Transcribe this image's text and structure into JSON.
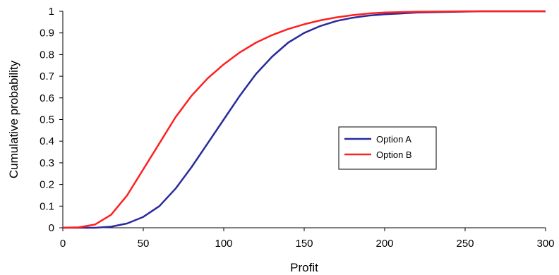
{
  "chart_data": {
    "type": "line",
    "title": "",
    "xlabel": "Profit",
    "ylabel": "Cumulative probability",
    "xlim": [
      0,
      300
    ],
    "ylim": [
      0,
      1
    ],
    "x_ticks": [
      "0",
      "50",
      "100",
      "150",
      "200",
      "250",
      "300"
    ],
    "y_ticks": [
      "0",
      "0.1",
      "0.2",
      "0.3",
      "0.4",
      "0.5",
      "0.6",
      "0.7",
      "0.8",
      "0.9",
      "1"
    ],
    "grid": false,
    "legend_position": "center-right",
    "series": [
      {
        "name": "Option A",
        "color": "#2a2a9c",
        "x": [
          0,
          20,
          30,
          40,
          50,
          60,
          70,
          80,
          90,
          100,
          110,
          120,
          130,
          140,
          150,
          160,
          170,
          180,
          190,
          200,
          210,
          220,
          240,
          260,
          300
        ],
        "y": [
          0,
          0,
          0.005,
          0.02,
          0.05,
          0.1,
          0.18,
          0.28,
          0.39,
          0.5,
          0.61,
          0.71,
          0.79,
          0.855,
          0.9,
          0.932,
          0.955,
          0.97,
          0.98,
          0.986,
          0.99,
          0.994,
          0.997,
          1,
          1
        ]
      },
      {
        "name": "Option B",
        "color": "#ff2020",
        "x": [
          0,
          10,
          20,
          30,
          40,
          50,
          60,
          70,
          80,
          90,
          100,
          110,
          120,
          130,
          140,
          150,
          160,
          170,
          180,
          190,
          200,
          220,
          250,
          300
        ],
        "y": [
          0,
          0.002,
          0.015,
          0.06,
          0.15,
          0.27,
          0.39,
          0.51,
          0.61,
          0.69,
          0.755,
          0.81,
          0.855,
          0.89,
          0.918,
          0.94,
          0.958,
          0.972,
          0.982,
          0.99,
          0.994,
          0.998,
          1,
          1
        ]
      }
    ]
  }
}
